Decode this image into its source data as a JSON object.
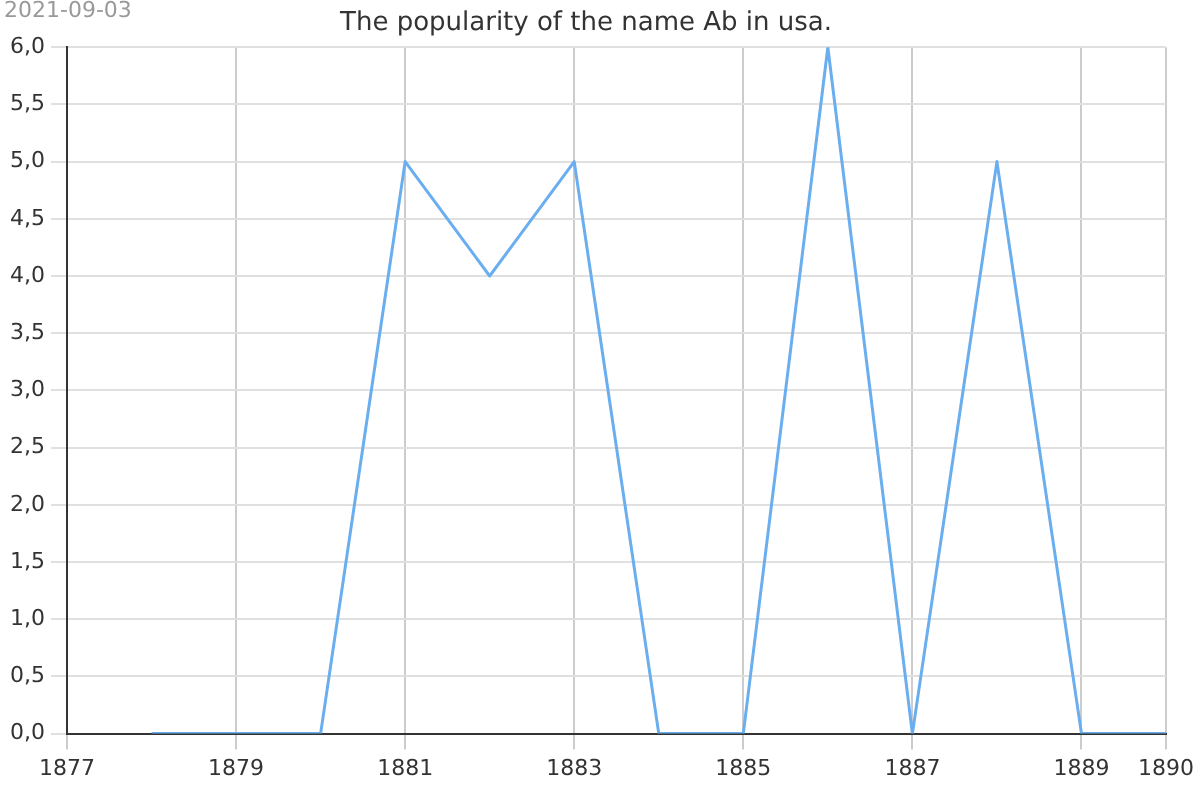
{
  "chart_data": {
    "type": "line",
    "title": "The popularity of the name Ab in usa.",
    "annotations": [
      "2021-09-03"
    ],
    "x": [
      1878,
      1879,
      1880,
      1881,
      1882,
      1883,
      1884,
      1885,
      1886,
      1887,
      1888,
      1889,
      1890
    ],
    "series": [
      {
        "color": "#6aaef0",
        "values": [
          0,
          0,
          0,
          5,
          4,
          5,
          0,
          0,
          6,
          0,
          5,
          0,
          0
        ]
      }
    ],
    "xlim": [
      1877,
      1890
    ],
    "xticks": [
      1877,
      1879,
      1881,
      1883,
      1885,
      1887,
      1889,
      1890
    ],
    "ylim": [
      0,
      6
    ],
    "yticks": [
      {
        "value": 0,
        "label": "0,0"
      },
      {
        "value": 0.5,
        "label": "0,5"
      },
      {
        "value": 1,
        "label": "1,0"
      },
      {
        "value": 1.5,
        "label": "1,5"
      },
      {
        "value": 2,
        "label": "2,0"
      },
      {
        "value": 2.5,
        "label": "2,5"
      },
      {
        "value": 3,
        "label": "3,0"
      },
      {
        "value": 3.5,
        "label": "3,5"
      },
      {
        "value": 4,
        "label": "4,0"
      },
      {
        "value": 4.5,
        "label": "4,5"
      },
      {
        "value": 5,
        "label": "5,0"
      },
      {
        "value": 5.5,
        "label": "5,5"
      },
      {
        "value": 6,
        "label": "6,0"
      }
    ],
    "grid": true,
    "legend": false,
    "marker": "none",
    "line_style": "solid"
  }
}
